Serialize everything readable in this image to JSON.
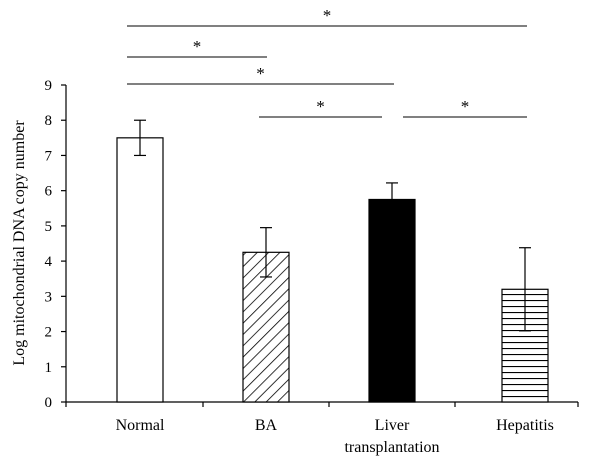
{
  "chart_data": {
    "type": "bar",
    "title": "",
    "xlabel": "",
    "ylabel": "Log mitochondrial DNA copy number",
    "ylim": [
      0,
      9
    ],
    "yticks": [
      0,
      1,
      2,
      3,
      4,
      5,
      6,
      7,
      8,
      9
    ],
    "grid": false,
    "legend": "none",
    "categories": [
      {
        "label": [
          "Normal"
        ],
        "value": 7.5,
        "error": 0.5,
        "fill": "white"
      },
      {
        "label": [
          "BA"
        ],
        "value": 4.25,
        "error": 0.7,
        "fill": "diagonal-hatch"
      },
      {
        "label": [
          "Liver",
          "transplantation"
        ],
        "value": 5.75,
        "error": 0.47,
        "fill": "solid-black"
      },
      {
        "label": [
          "Hepatitis"
        ],
        "value": 3.2,
        "error": 1.18,
        "fill": "horizontal-hatch"
      }
    ],
    "significance": [
      {
        "from": 0,
        "to": 3,
        "label": "*"
      },
      {
        "from": 0,
        "to": 1,
        "label": "*"
      },
      {
        "from": 0,
        "to": 2,
        "label": "*"
      },
      {
        "from": 1,
        "to": 2,
        "label": "*"
      },
      {
        "from": 2,
        "to": 3,
        "label": "*"
      }
    ]
  }
}
